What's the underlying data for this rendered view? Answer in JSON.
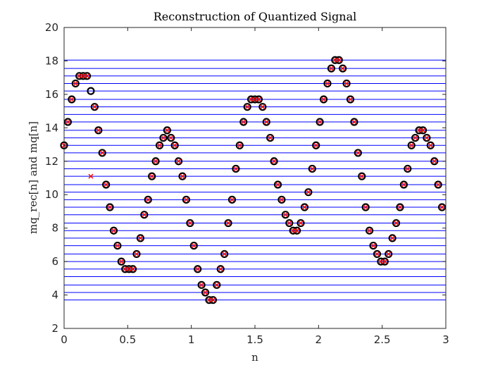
{
  "chart_data": {
    "type": "scatter",
    "title": "Reconstruction of Quantized Signal",
    "xlabel": "n",
    "ylabel": "mq_rec[n] and mq[n]",
    "xlim": [
      0,
      3
    ],
    "ylim": [
      2,
      20
    ],
    "xticks": [
      0,
      0.5,
      1,
      1.5,
      2,
      2.5,
      3
    ],
    "yticks": [
      2,
      4,
      6,
      8,
      10,
      12,
      14,
      16,
      18,
      20
    ],
    "grid": false,
    "legend": "none",
    "colors": {
      "levels": "#0000ff",
      "circles": "#000000",
      "crosses": "#ff0000",
      "axes": "#262626"
    },
    "quantization_levels": [
      3.7,
      4.15,
      4.6,
      5.1,
      5.55,
      6.0,
      6.45,
      6.95,
      7.4,
      7.85,
      8.3,
      8.8,
      9.25,
      9.7,
      10.15,
      10.6,
      11.1,
      11.55,
      12.0,
      12.5,
      12.95,
      13.4,
      13.85,
      14.35,
      14.8,
      15.25,
      15.7,
      16.2,
      16.65,
      17.1,
      17.55,
      18.05
    ],
    "x": [
      0,
      0.03,
      0.06,
      0.09,
      0.12,
      0.15,
      0.18,
      0.21,
      0.24,
      0.27,
      0.3,
      0.33,
      0.36,
      0.39,
      0.42,
      0.45,
      0.48,
      0.51,
      0.54,
      0.57,
      0.6,
      0.63,
      0.66,
      0.69,
      0.72,
      0.75,
      0.78,
      0.81,
      0.84,
      0.87,
      0.9,
      0.93,
      0.96,
      0.99,
      1.02,
      1.05,
      1.08,
      1.11,
      1.14,
      1.17,
      1.2,
      1.23,
      1.26,
      1.29,
      1.32,
      1.35,
      1.38,
      1.41,
      1.44,
      1.47,
      1.5,
      1.53,
      1.56,
      1.59,
      1.62,
      1.65,
      1.68,
      1.71,
      1.74,
      1.77,
      1.8,
      1.83,
      1.86,
      1.89,
      1.92,
      1.95,
      1.98,
      2.01,
      2.04,
      2.07,
      2.1,
      2.13,
      2.16,
      2.19,
      2.22,
      2.25,
      2.28,
      2.31,
      2.34,
      2.37,
      2.4,
      2.43,
      2.46,
      2.49,
      2.52,
      2.55,
      2.58,
      2.61,
      2.64,
      2.67,
      2.7,
      2.73,
      2.76,
      2.79,
      2.82,
      2.85,
      2.88,
      2.91,
      2.94,
      2.97
    ],
    "series": [
      {
        "name": "mq[n]",
        "marker": "circle",
        "values": [
          12.95,
          14.35,
          15.7,
          16.65,
          17.1,
          17.1,
          17.1,
          16.2,
          15.25,
          13.85,
          12.5,
          10.6,
          9.25,
          7.85,
          6.95,
          6.0,
          5.55,
          5.55,
          5.55,
          6.45,
          7.4,
          8.8,
          9.7,
          11.1,
          12.0,
          12.95,
          13.4,
          13.85,
          13.4,
          12.95,
          12.0,
          11.1,
          9.7,
          8.3,
          6.95,
          5.55,
          4.6,
          4.15,
          3.7,
          3.7,
          4.6,
          5.55,
          6.45,
          8.3,
          9.7,
          11.55,
          12.95,
          14.35,
          15.25,
          15.7,
          15.7,
          15.7,
          15.25,
          14.35,
          13.4,
          12.0,
          10.6,
          9.7,
          8.8,
          8.3,
          7.85,
          7.85,
          8.3,
          9.25,
          10.15,
          11.55,
          12.95,
          14.35,
          15.7,
          16.65,
          17.55,
          18.05,
          18.05,
          17.55,
          16.65,
          15.7,
          14.35,
          12.5,
          11.1,
          9.25,
          7.85,
          6.95,
          6.45,
          6.0,
          6.0,
          6.45,
          7.4,
          8.3,
          9.25,
          10.6,
          11.55,
          12.95,
          13.4,
          13.85,
          13.85,
          13.4,
          12.95,
          12.0,
          10.6,
          9.25
        ]
      },
      {
        "name": "mq_rec[n]",
        "marker": "cross",
        "values": [
          12.95,
          14.35,
          15.7,
          16.65,
          17.1,
          17.1,
          17.1,
          11.1,
          15.25,
          13.85,
          12.5,
          10.6,
          9.25,
          7.85,
          6.95,
          6.0,
          5.55,
          5.55,
          5.55,
          6.45,
          7.4,
          8.8,
          9.7,
          11.1,
          12.0,
          12.95,
          13.4,
          13.85,
          13.4,
          12.95,
          12.0,
          11.1,
          9.7,
          8.3,
          6.95,
          5.55,
          4.6,
          4.15,
          3.7,
          3.7,
          4.6,
          5.55,
          6.45,
          8.3,
          9.7,
          11.55,
          12.95,
          14.35,
          15.25,
          15.7,
          15.7,
          15.7,
          15.25,
          14.35,
          13.4,
          12.0,
          10.6,
          9.7,
          8.8,
          8.3,
          7.85,
          7.85,
          8.3,
          9.25,
          10.15,
          11.55,
          12.95,
          14.35,
          15.7,
          16.65,
          17.55,
          18.05,
          18.05,
          17.55,
          16.65,
          15.7,
          14.35,
          12.5,
          11.1,
          9.25,
          7.85,
          6.95,
          6.45,
          6.0,
          6.0,
          6.45,
          7.4,
          8.3,
          9.25,
          10.6,
          11.55,
          12.95,
          13.4,
          13.85,
          13.85,
          13.4,
          12.95,
          12.0,
          10.6,
          9.25
        ]
      }
    ]
  }
}
